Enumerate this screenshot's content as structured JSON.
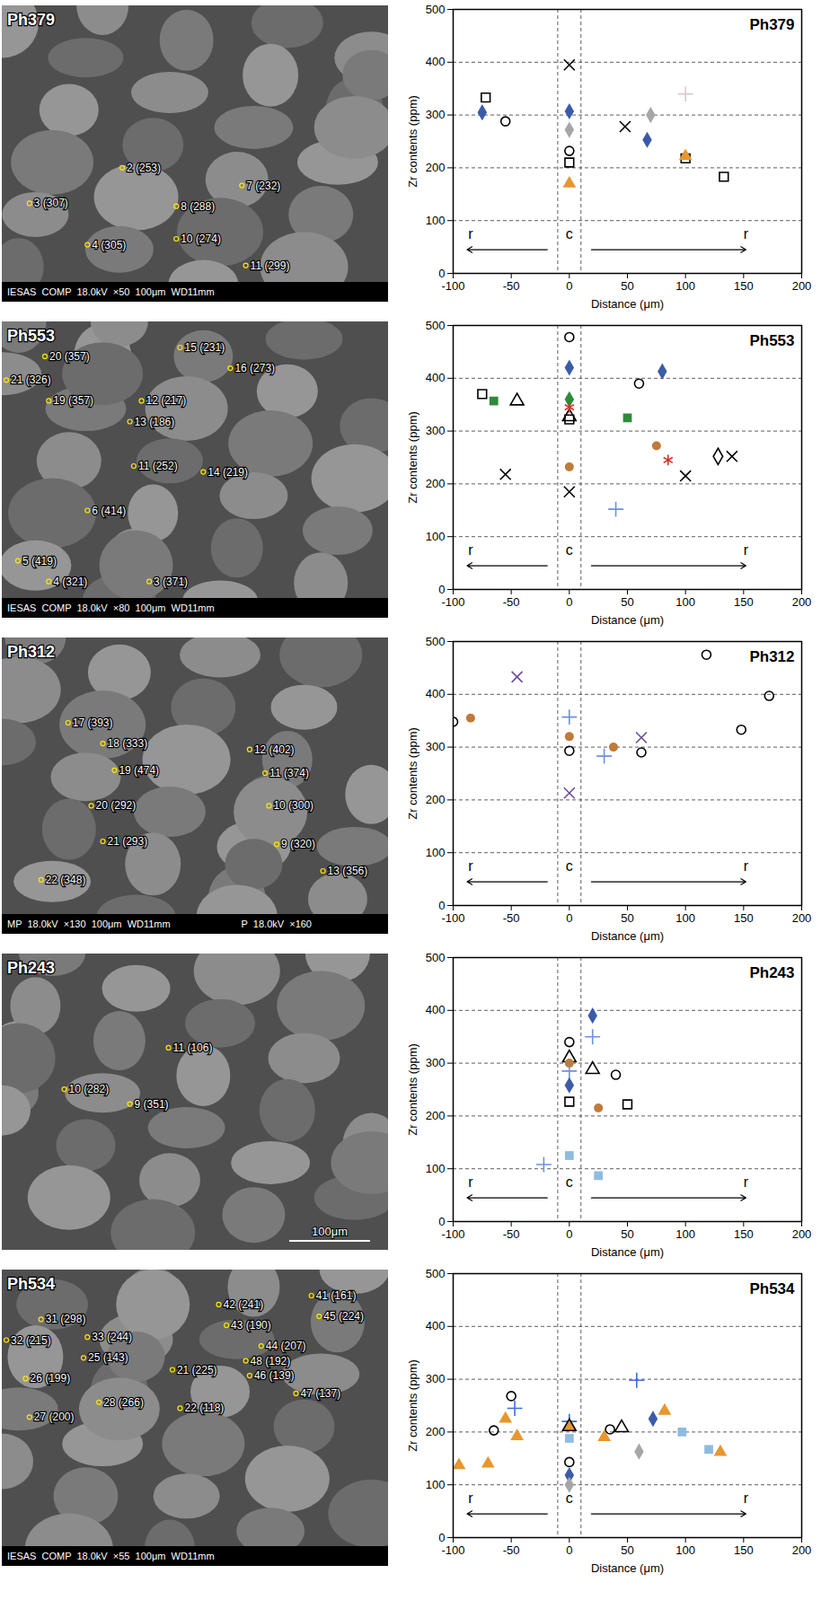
{
  "chart_data": [
    {
      "type": "scatter",
      "title": "Ph379",
      "x_label": "Distance (μm)",
      "y_label": "Zr contents (ppm)",
      "xlim": [
        -100,
        200
      ],
      "xticks": [
        -100,
        -50,
        0,
        50,
        100,
        150,
        200
      ],
      "ylim": [
        0,
        500
      ],
      "yticks": [
        0,
        100,
        200,
        300,
        400,
        500
      ],
      "grid": true,
      "center_band": [
        -10,
        10
      ],
      "annotations": [
        {
          "text": "r"
        },
        {
          "text": "c"
        },
        {
          "text": "r"
        }
      ],
      "series": [
        {
          "color": "#3b5ba9",
          "marker": "diamond",
          "x": [
            -75,
            0,
            67
          ],
          "values": [
            305,
            307,
            253
          ]
        },
        {
          "color": "#000000",
          "marker": "open_square",
          "x": [
            -72,
            0,
            100,
            133
          ],
          "values": [
            333,
            210,
            218,
            183
          ]
        },
        {
          "color": "#000000",
          "marker": "open_circle",
          "x": [
            -55,
            0
          ],
          "values": [
            288,
            232
          ]
        },
        {
          "color": "#000000",
          "marker": "times",
          "x": [
            0,
            48
          ],
          "values": [
            395,
            278
          ]
        },
        {
          "color": "#a6a6a6",
          "marker": "diamond",
          "x": [
            0,
            70
          ],
          "values": [
            272,
            300
          ]
        },
        {
          "color": "#e8962e",
          "marker": "triangle",
          "x": [
            0,
            100
          ],
          "values": [
            170,
            222
          ]
        },
        {
          "color": "#d9c8d4",
          "marker": "plus",
          "x": [
            100
          ],
          "values": [
            340
          ]
        }
      ]
    },
    {
      "type": "scatter",
      "title": "Ph553",
      "x_label": "Distance (μm)",
      "y_label": "Zr contents (ppm)",
      "xlim": [
        -100,
        200
      ],
      "xticks": [
        -100,
        -50,
        0,
        50,
        100,
        150,
        200
      ],
      "ylim": [
        0,
        500
      ],
      "yticks": [
        0,
        100,
        200,
        300,
        400,
        500
      ],
      "grid": true,
      "center_band": [
        -10,
        10
      ],
      "annotations": [
        {
          "text": "r"
        },
        {
          "text": "c"
        },
        {
          "text": "r"
        }
      ],
      "series": [
        {
          "color": "#000000",
          "marker": "open_square",
          "x": [
            -75,
            0
          ],
          "values": [
            370,
            322
          ]
        },
        {
          "color": "#2e8b3a",
          "marker": "square",
          "x": [
            -65,
            50
          ],
          "values": [
            357,
            325
          ]
        },
        {
          "color": "#000000",
          "marker": "open_triangle",
          "x": [
            -45,
            0
          ],
          "values": [
            357,
            327
          ]
        },
        {
          "color": "#000000",
          "marker": "times",
          "x": [
            -55,
            0,
            100,
            140
          ],
          "values": [
            218,
            185,
            215,
            252
          ]
        },
        {
          "color": "#000000",
          "marker": "open_circle",
          "x": [
            0,
            60
          ],
          "values": [
            478,
            390
          ]
        },
        {
          "color": "#3b5ba9",
          "marker": "diamond",
          "x": [
            0,
            80
          ],
          "values": [
            420,
            413
          ]
        },
        {
          "color": "#2e8b3a",
          "marker": "diamond",
          "x": [
            0
          ],
          "values": [
            360
          ]
        },
        {
          "color": "#d6312b",
          "marker": "asterisk",
          "x": [
            0,
            85
          ],
          "values": [
            345,
            245
          ]
        },
        {
          "color": "#c07a3a",
          "marker": "circle",
          "x": [
            0,
            75
          ],
          "values": [
            232,
            272
          ]
        },
        {
          "color": "#6f8fe0",
          "marker": "plus",
          "x": [
            40
          ],
          "values": [
            152
          ]
        },
        {
          "color": "#000000",
          "marker": "open_diamond",
          "x": [
            128
          ],
          "values": [
            252
          ]
        }
      ]
    },
    {
      "type": "scatter",
      "title": "Ph312",
      "x_label": "Distance (μm)",
      "y_label": "Zr contents (ppm)",
      "xlim": [
        -100,
        200
      ],
      "xticks": [
        -100,
        -50,
        0,
        50,
        100,
        150,
        200
      ],
      "ylim": [
        0,
        500
      ],
      "yticks": [
        0,
        100,
        200,
        300,
        400,
        500
      ],
      "grid": true,
      "center_band": [
        -10,
        10
      ],
      "annotations": [
        {
          "text": "r"
        },
        {
          "text": "c"
        },
        {
          "text": "r"
        }
      ],
      "series": [
        {
          "color": "#000000",
          "marker": "open_circle",
          "x": [
            -100,
            0,
            62,
            118,
            148,
            172
          ],
          "values": [
            348,
            293,
            290,
            475,
            333,
            397
          ]
        },
        {
          "color": "#c07a3a",
          "marker": "circle",
          "x": [
            -85,
            0,
            38
          ],
          "values": [
            355,
            320,
            300
          ]
        },
        {
          "color": "#6b4c9a",
          "marker": "times",
          "x": [
            -45,
            0,
            62
          ],
          "values": [
            433,
            213,
            318
          ]
        },
        {
          "color": "#6f8fe0",
          "marker": "plus",
          "x": [
            0,
            30
          ],
          "values": [
            357,
            283
          ]
        }
      ]
    },
    {
      "type": "scatter",
      "title": "Ph243",
      "x_label": "Distance (μm)",
      "y_label": "Zr contents (ppm)",
      "xlim": [
        -100,
        200
      ],
      "xticks": [
        -100,
        -50,
        0,
        50,
        100,
        150,
        200
      ],
      "ylim": [
        0,
        500
      ],
      "yticks": [
        0,
        100,
        200,
        300,
        400,
        500
      ],
      "grid": true,
      "center_band": [
        -10,
        10
      ],
      "annotations": [
        {
          "text": "r"
        },
        {
          "text": "c"
        },
        {
          "text": "r"
        }
      ],
      "series": [
        {
          "color": "#000000",
          "marker": "open_circle",
          "x": [
            0,
            40
          ],
          "values": [
            340,
            278
          ]
        },
        {
          "color": "#000000",
          "marker": "open_triangle",
          "x": [
            0,
            20
          ],
          "values": [
            310,
            288
          ]
        },
        {
          "color": "#c07a3a",
          "marker": "circle",
          "x": [
            0,
            25
          ],
          "values": [
            300,
            215
          ]
        },
        {
          "color": "#6f8fe0",
          "marker": "plus",
          "x": [
            -22,
            0,
            20
          ],
          "values": [
            108,
            285,
            350
          ]
        },
        {
          "color": "#3b5ba9",
          "marker": "diamond",
          "x": [
            0,
            20
          ],
          "values": [
            258,
            390
          ]
        },
        {
          "color": "#000000",
          "marker": "open_square",
          "x": [
            0,
            50
          ],
          "values": [
            227,
            222
          ]
        },
        {
          "color": "#8fbbe0",
          "marker": "square",
          "x": [
            0,
            25
          ],
          "values": [
            125,
            87
          ]
        }
      ]
    },
    {
      "type": "scatter",
      "title": "Ph534",
      "x_label": "Distance (μm)",
      "y_label": "Zr contents (ppm)",
      "xlim": [
        -100,
        200
      ],
      "xticks": [
        -100,
        -50,
        0,
        50,
        100,
        150,
        200
      ],
      "ylim": [
        0,
        500
      ],
      "yticks": [
        0,
        100,
        200,
        300,
        400,
        500
      ],
      "grid": true,
      "center_band": [
        -10,
        10
      ],
      "annotations": [
        {
          "text": "r"
        },
        {
          "text": "c"
        },
        {
          "text": "r"
        }
      ],
      "series": [
        {
          "color": "#000000",
          "marker": "open_circle",
          "x": [
            -65,
            -50,
            0,
            35
          ],
          "values": [
            203,
            268,
            143,
            205
          ]
        },
        {
          "color": "#3b6fd0",
          "marker": "plus",
          "x": [
            -47,
            0,
            58
          ],
          "values": [
            245,
            220,
            298
          ]
        },
        {
          "color": "#e8962e",
          "marker": "triangle",
          "x": [
            -95,
            -70,
            -55,
            -45,
            0,
            30,
            82,
            130
          ],
          "values": [
            137,
            140,
            225,
            192,
            210,
            190,
            240,
            162
          ]
        },
        {
          "color": "#000000",
          "marker": "open_triangle",
          "x": [
            0,
            45
          ],
          "values": [
            210,
            208
          ]
        },
        {
          "color": "#3b5ba9",
          "marker": "diamond",
          "x": [
            0,
            72
          ],
          "values": [
            118,
            225
          ]
        },
        {
          "color": "#8fbbe0",
          "marker": "square",
          "x": [
            0,
            97,
            120
          ],
          "values": [
            188,
            200,
            167
          ]
        },
        {
          "color": "#a6a6a6",
          "marker": "diamond",
          "x": [
            0,
            60
          ],
          "values": [
            100,
            163
          ]
        }
      ]
    }
  ],
  "images": [
    {
      "label": "Ph379",
      "spots": [
        "2 (253)",
        "3 (307)",
        "4 (305)",
        "8 (288)",
        "7 (232)",
        "10 (274)",
        "11 (299)"
      ],
      "footer": [
        "IESAS  COMP  18.0kV  ×50  100μm  WD11mm"
      ]
    },
    {
      "label": "Ph553",
      "spots": [
        "20 (357)",
        "21 (326)",
        "19 (357)",
        "15 (231)",
        "16 (273)",
        "12 (217)",
        "13 (186)",
        "11 (252)",
        "14 (219)",
        "6 (414)",
        "5 (419)",
        "4 (321)",
        "3 (371)"
      ],
      "footer": [
        "IESAS  COMP  18.0kV  ×80  100μm  WD11mm"
      ]
    },
    {
      "label": "Ph312",
      "spots": [
        "17 (393)",
        "18 (333)",
        "19 (474)",
        "20 (292)",
        "21 (293)",
        "22 (348)",
        "12 (402)",
        "11 (374)",
        "10 (300)",
        "9 (320)",
        "13 (356)"
      ],
      "footer": [
        "MP  18.0kV  ×130  100μm  WD11mm",
        "P  18.0kV  ×160"
      ]
    },
    {
      "label": "Ph243",
      "spots": [
        "11 (106)",
        "10 (282)",
        "9 (351)"
      ],
      "scale": "100μm"
    },
    {
      "label": "Ph534",
      "spots": [
        "31 (298)",
        "32 (215)",
        "33 (244)",
        "25 (143)",
        "26 (199)",
        "27 (200)",
        "28 (266)",
        "21 (225)",
        "22 (118)",
        "42 (241)",
        "41 (161)",
        "45 (224)",
        "43 (190)",
        "44 (207)",
        "48 (192)",
        "46 (139)",
        "47 (137)"
      ],
      "footer": [
        "IESAS  COMP  18.0kV  ×55  100μm  WD11mm"
      ]
    }
  ]
}
